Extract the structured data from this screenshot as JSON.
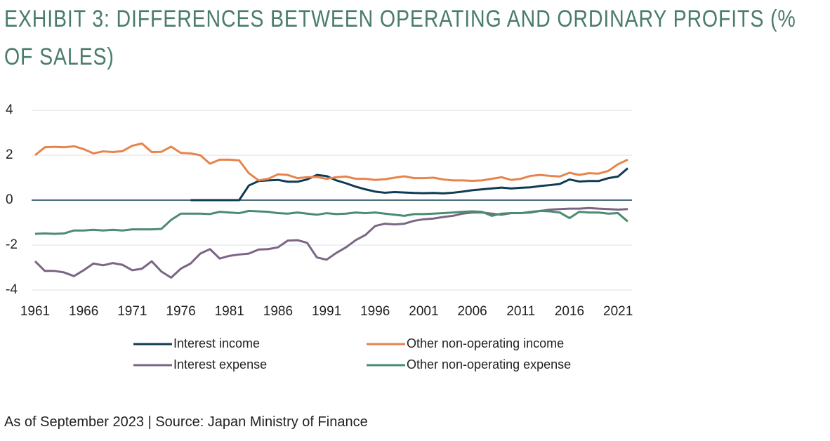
{
  "chart_data": {
    "type": "line",
    "title": "EXHIBIT 3: DIFFERENCES BETWEEN OPERATING AND ORDINARY PROFITS (% OF SALES)",
    "note": "As of September 2023 | Source: Japan Ministry of Finance",
    "x": [
      1961,
      1962,
      1963,
      1964,
      1965,
      1966,
      1967,
      1968,
      1969,
      1970,
      1971,
      1972,
      1973,
      1974,
      1975,
      1976,
      1977,
      1978,
      1979,
      1980,
      1981,
      1982,
      1983,
      1984,
      1985,
      1986,
      1987,
      1988,
      1989,
      1990,
      1991,
      1992,
      1993,
      1994,
      1995,
      1996,
      1997,
      1998,
      1999,
      2000,
      2001,
      2002,
      2003,
      2004,
      2005,
      2006,
      2007,
      2008,
      2009,
      2010,
      2011,
      2012,
      2013,
      2014,
      2015,
      2016,
      2017,
      2018,
      2019,
      2020,
      2021,
      2022
    ],
    "xlim": [
      1961,
      2022
    ],
    "xticks": [
      1961,
      1966,
      1971,
      1976,
      1981,
      1986,
      1991,
      1996,
      2001,
      2006,
      2011,
      2016,
      2021
    ],
    "ylim": [
      -4,
      4
    ],
    "yticks": [
      4,
      2,
      0,
      -2,
      -4
    ],
    "grid": true,
    "legend": "bottom",
    "series": [
      {
        "name": "Interest income",
        "color": "#0f3b53",
        "values": [
          null,
          null,
          null,
          null,
          null,
          null,
          null,
          null,
          null,
          null,
          null,
          null,
          null,
          null,
          null,
          null,
          0,
          0,
          0,
          0,
          0,
          0,
          0.65,
          0.85,
          0.88,
          0.9,
          0.82,
          0.82,
          0.92,
          1.12,
          1.07,
          0.88,
          0.75,
          0.6,
          0.48,
          0.38,
          0.33,
          0.36,
          0.34,
          0.32,
          0.31,
          0.32,
          0.3,
          0.33,
          0.38,
          0.44,
          0.48,
          0.52,
          0.56,
          0.52,
          0.55,
          0.57,
          0.63,
          0.67,
          0.72,
          0.92,
          0.83,
          0.85,
          0.85,
          0.98,
          1.05,
          1.42
        ]
      },
      {
        "name": "Other non-operating income",
        "color": "#e8834a",
        "values": [
          2.0,
          2.35,
          2.37,
          2.35,
          2.4,
          2.27,
          2.08,
          2.17,
          2.14,
          2.18,
          2.42,
          2.52,
          2.14,
          2.15,
          2.38,
          2.1,
          2.08,
          2.0,
          1.62,
          1.8,
          1.8,
          1.77,
          1.2,
          0.88,
          0.95,
          1.15,
          1.12,
          0.98,
          1.02,
          1.03,
          0.95,
          1.02,
          1.05,
          0.95,
          0.95,
          0.9,
          0.93,
          1.0,
          1.06,
          0.98,
          0.98,
          1.0,
          0.92,
          0.88,
          0.88,
          0.86,
          0.88,
          0.95,
          1.02,
          0.9,
          0.95,
          1.08,
          1.12,
          1.08,
          1.05,
          1.22,
          1.12,
          1.2,
          1.18,
          1.3,
          1.6,
          1.8
        ]
      },
      {
        "name": "Interest expense",
        "color": "#7b6585",
        "values": [
          -2.72,
          -3.15,
          -3.15,
          -3.22,
          -3.38,
          -3.12,
          -2.82,
          -2.9,
          -2.8,
          -2.88,
          -3.12,
          -3.05,
          -2.72,
          -3.18,
          -3.45,
          -3.05,
          -2.82,
          -2.38,
          -2.18,
          -2.6,
          -2.48,
          -2.42,
          -2.38,
          -2.2,
          -2.18,
          -2.1,
          -1.8,
          -1.78,
          -1.9,
          -2.55,
          -2.65,
          -2.35,
          -2.1,
          -1.78,
          -1.55,
          -1.15,
          -1.05,
          -1.08,
          -1.05,
          -0.92,
          -0.85,
          -0.82,
          -0.75,
          -0.7,
          -0.6,
          -0.55,
          -0.55,
          -0.6,
          -0.65,
          -0.58,
          -0.58,
          -0.55,
          -0.48,
          -0.42,
          -0.4,
          -0.38,
          -0.38,
          -0.35,
          -0.38,
          -0.4,
          -0.42,
          -0.4
        ]
      },
      {
        "name": "Other non-operating expense",
        "color": "#4a8c72",
        "values": [
          -1.5,
          -1.48,
          -1.5,
          -1.48,
          -1.35,
          -1.35,
          -1.32,
          -1.35,
          -1.32,
          -1.35,
          -1.3,
          -1.3,
          -1.3,
          -1.28,
          -0.88,
          -0.6,
          -0.6,
          -0.6,
          -0.62,
          -0.52,
          -0.55,
          -0.58,
          -0.48,
          -0.5,
          -0.52,
          -0.58,
          -0.6,
          -0.55,
          -0.6,
          -0.65,
          -0.58,
          -0.62,
          -0.6,
          -0.55,
          -0.58,
          -0.55,
          -0.6,
          -0.65,
          -0.7,
          -0.62,
          -0.62,
          -0.6,
          -0.58,
          -0.55,
          -0.52,
          -0.5,
          -0.52,
          -0.7,
          -0.6,
          -0.58,
          -0.58,
          -0.52,
          -0.48,
          -0.5,
          -0.55,
          -0.8,
          -0.52,
          -0.55,
          -0.55,
          -0.6,
          -0.58,
          -0.95
        ]
      }
    ]
  }
}
